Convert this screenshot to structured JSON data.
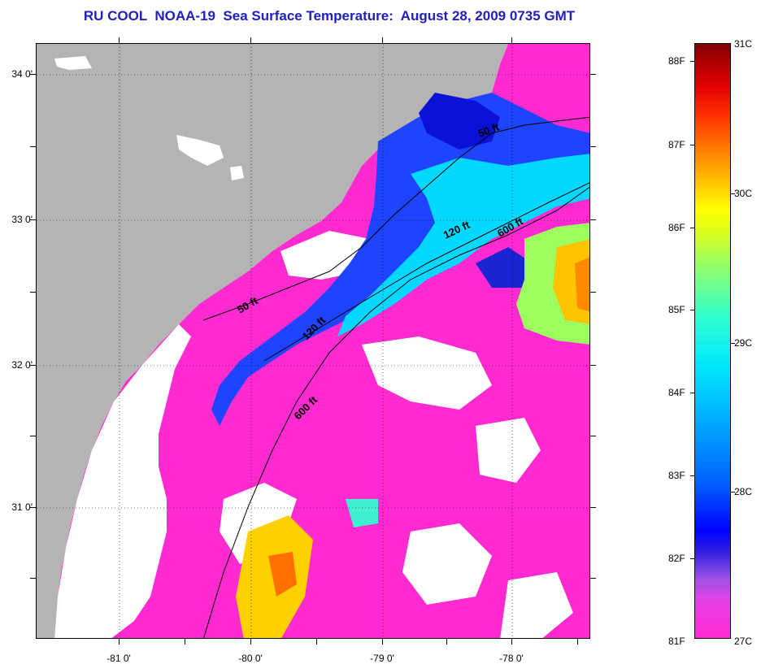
{
  "title": "RU COOL  NOAA-19  Sea Surface Temperature:  August 28, 2009 0735 GMT",
  "map": {
    "lat_labels": [
      "34 0'",
      "33 0'",
      "32 0'",
      "31 0'"
    ],
    "lon_labels": [
      "-81 0'",
      "-80 0'",
      "-79 0'",
      "-78 0'"
    ],
    "contour_labels": [
      "50 ft",
      "120 ft",
      "600 ft",
      "50 ft",
      "120 ft",
      "600 ft"
    ],
    "colors": {
      "land": "#b4b4b4",
      "cloud": "#ffffff",
      "coolest_water": "#ff2ad0",
      "warm_water": "#ffd000"
    }
  },
  "colorbar": {
    "fahrenheit_labels": [
      "88F",
      "87F",
      "86F",
      "85F",
      "84F",
      "83F",
      "82F",
      "81F"
    ],
    "celsius_labels": [
      "31C",
      "30C",
      "29C",
      "28C",
      "27C"
    ],
    "range_f": [
      81,
      88
    ],
    "range_c": [
      27,
      31
    ]
  }
}
